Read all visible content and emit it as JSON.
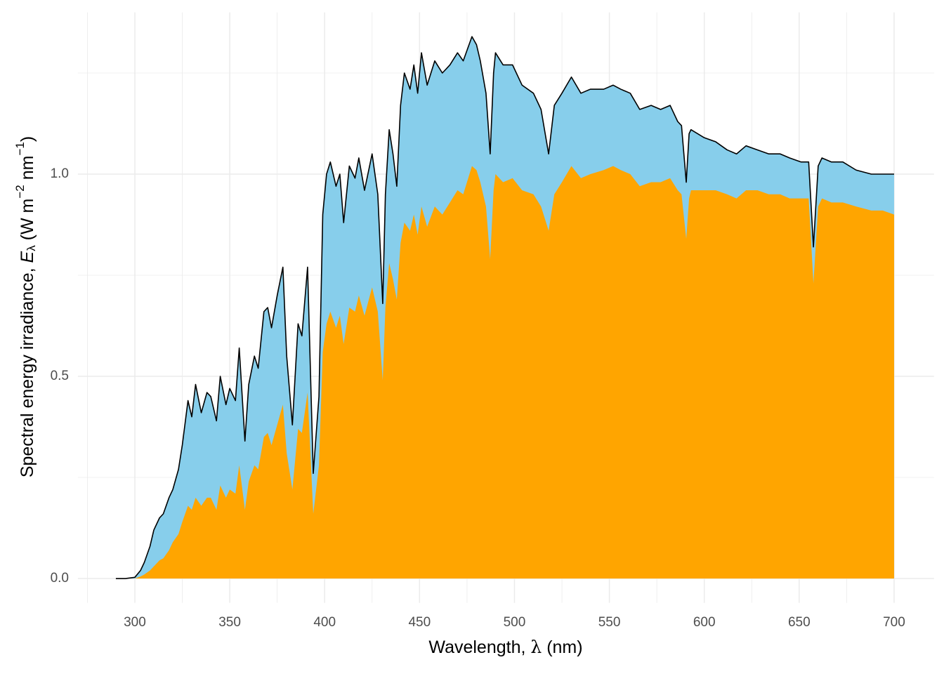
{
  "chart_data": {
    "type": "area",
    "xlabel": {
      "text": "Wavelength,  ",
      "symbol": "λ",
      "units": " (nm)"
    },
    "ylabel": {
      "text": "Spectral energy irradiance,  ",
      "symbol": "E",
      "subscript": "λ",
      "units": " (W m",
      "exp1": "−2",
      "mid": " nm",
      "exp2": "−1",
      "close": ")"
    },
    "x": [
      290,
      295,
      300,
      303,
      305,
      308,
      310,
      313,
      315,
      318,
      320,
      323,
      325,
      328,
      330,
      332,
      335,
      338,
      340,
      343,
      345,
      348,
      350,
      353,
      355,
      358,
      360,
      363,
      365,
      368,
      370,
      372,
      375,
      378,
      380,
      383,
      386,
      388,
      391,
      394,
      397,
      399,
      401,
      403,
      406,
      408,
      410,
      413,
      416,
      418,
      421,
      425,
      428,
      430.6,
      432,
      434,
      436,
      438,
      440,
      442,
      445,
      447,
      449,
      451,
      454,
      458,
      462,
      466,
      470,
      473,
      477.6,
      480,
      482,
      485,
      487.2,
      489,
      490,
      494,
      499,
      504,
      510,
      514,
      518,
      521,
      525,
      530,
      535,
      540,
      547,
      552,
      556,
      561,
      566,
      572,
      577,
      582,
      586,
      588,
      590.5,
      592,
      593,
      600,
      606,
      612,
      617,
      622,
      628,
      634,
      640,
      645,
      651,
      655,
      657.5,
      660,
      662,
      667,
      673,
      680,
      688,
      694,
      700
    ],
    "series": [
      {
        "color": "#87ceeb",
        "line_color": "#000000",
        "values": [
          0,
          0,
          0.003,
          0.02,
          0.04,
          0.08,
          0.12,
          0.15,
          0.16,
          0.2,
          0.22,
          0.27,
          0.33,
          0.44,
          0.4,
          0.48,
          0.41,
          0.46,
          0.45,
          0.39,
          0.5,
          0.43,
          0.47,
          0.44,
          0.57,
          0.34,
          0.48,
          0.55,
          0.52,
          0.66,
          0.67,
          0.62,
          0.7,
          0.77,
          0.55,
          0.38,
          0.63,
          0.6,
          0.77,
          0.26,
          0.45,
          0.9,
          1.0,
          1.03,
          0.97,
          1.0,
          0.88,
          1.02,
          0.99,
          1.04,
          0.96,
          1.05,
          0.95,
          0.68,
          0.95,
          1.11,
          1.05,
          0.97,
          1.17,
          1.25,
          1.21,
          1.27,
          1.2,
          1.3,
          1.22,
          1.28,
          1.25,
          1.27,
          1.3,
          1.28,
          1.34,
          1.32,
          1.28,
          1.2,
          1.05,
          1.25,
          1.3,
          1.27,
          1.27,
          1.22,
          1.2,
          1.16,
          1.05,
          1.17,
          1.2,
          1.24,
          1.2,
          1.21,
          1.21,
          1.22,
          1.21,
          1.2,
          1.16,
          1.17,
          1.16,
          1.17,
          1.13,
          1.12,
          0.98,
          1.1,
          1.11,
          1.09,
          1.08,
          1.06,
          1.05,
          1.07,
          1.06,
          1.05,
          1.05,
          1.04,
          1.03,
          1.03,
          0.82,
          1.02,
          1.04,
          1.03,
          1.03,
          1.01,
          1.0,
          1.0,
          1.0
        ]
      },
      {
        "color": "#ffa500",
        "values": [
          0,
          0,
          0,
          0.005,
          0.01,
          0.02,
          0.03,
          0.045,
          0.05,
          0.07,
          0.09,
          0.11,
          0.14,
          0.18,
          0.17,
          0.2,
          0.18,
          0.2,
          0.2,
          0.17,
          0.23,
          0.2,
          0.22,
          0.21,
          0.28,
          0.17,
          0.24,
          0.28,
          0.27,
          0.35,
          0.36,
          0.33,
          0.38,
          0.43,
          0.31,
          0.22,
          0.37,
          0.36,
          0.46,
          0.16,
          0.28,
          0.56,
          0.63,
          0.66,
          0.62,
          0.65,
          0.58,
          0.67,
          0.66,
          0.7,
          0.65,
          0.72,
          0.66,
          0.49,
          0.67,
          0.78,
          0.74,
          0.69,
          0.83,
          0.88,
          0.86,
          0.9,
          0.85,
          0.92,
          0.87,
          0.92,
          0.9,
          0.93,
          0.96,
          0.95,
          1.02,
          1.01,
          0.98,
          0.92,
          0.79,
          0.96,
          1.0,
          0.98,
          0.99,
          0.96,
          0.95,
          0.92,
          0.86,
          0.95,
          0.98,
          1.02,
          0.99,
          1.0,
          1.01,
          1.02,
          1.01,
          1.0,
          0.97,
          0.98,
          0.98,
          0.99,
          0.96,
          0.95,
          0.84,
          0.94,
          0.96,
          0.96,
          0.96,
          0.95,
          0.94,
          0.96,
          0.96,
          0.95,
          0.95,
          0.94,
          0.94,
          0.94,
          0.73,
          0.92,
          0.94,
          0.93,
          0.93,
          0.92,
          0.91,
          0.91,
          0.9
        ]
      }
    ],
    "xlim": [
      270,
      721
    ],
    "ylim": [
      -0.06,
      1.4
    ],
    "xticks": [
      300,
      350,
      400,
      450,
      500,
      550,
      600,
      650,
      700
    ],
    "yticks": [
      {
        "value": 0,
        "label": "0.0"
      },
      0.5,
      {
        "value": 1,
        "label": "1.0"
      }
    ],
    "x_minor_ticks": [
      275,
      325,
      375,
      425,
      475,
      525,
      575,
      625,
      675
    ],
    "y_minor_ticks": [
      0.25,
      0.75,
      1.25
    ],
    "grid": true
  }
}
